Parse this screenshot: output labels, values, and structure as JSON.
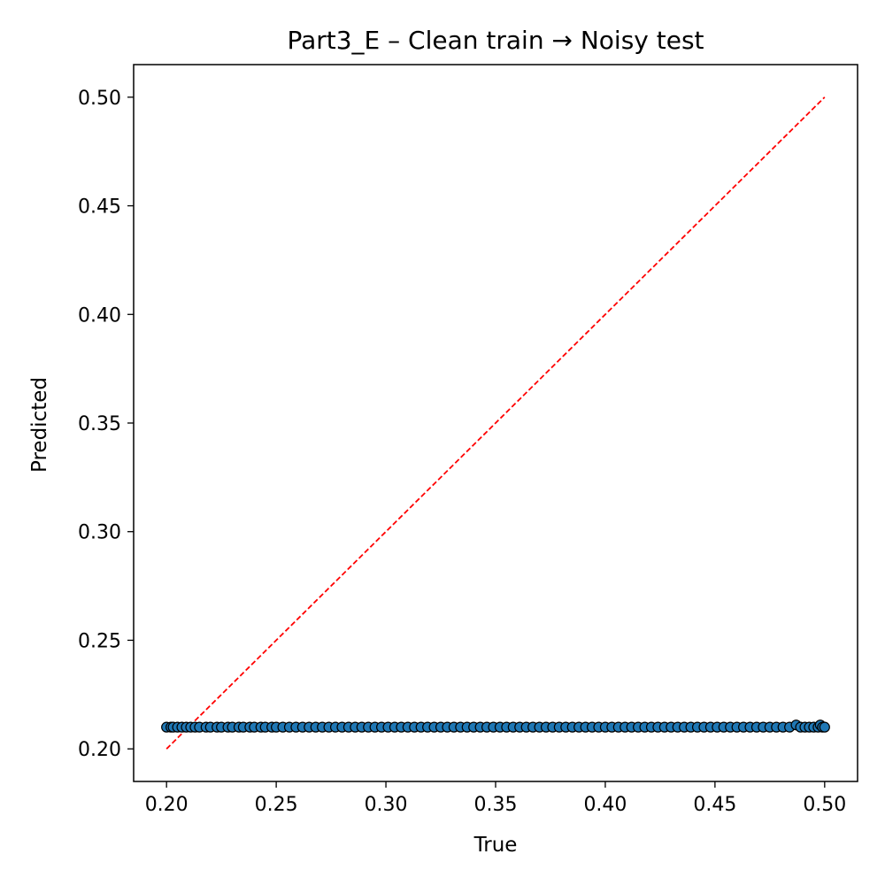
{
  "chart_data": {
    "type": "scatter",
    "title": "Part3_E – Clean train → Noisy test",
    "xlabel": "True",
    "ylabel": "Predicted",
    "xlim": [
      0.185,
      0.515
    ],
    "ylim": [
      0.185,
      0.515
    ],
    "xticks": [
      0.2,
      0.25,
      0.3,
      0.35,
      0.4,
      0.45,
      0.5
    ],
    "xtick_labels": [
      "0.20",
      "0.25",
      "0.30",
      "0.35",
      "0.40",
      "0.45",
      "0.50"
    ],
    "yticks": [
      0.2,
      0.25,
      0.3,
      0.35,
      0.4,
      0.45,
      0.5
    ],
    "ytick_labels": [
      "0.20",
      "0.25",
      "0.30",
      "0.35",
      "0.40",
      "0.45",
      "0.50"
    ],
    "grid": false,
    "series": [
      {
        "marker_color": "#1f77b4",
        "edge_color": "#000000",
        "points": {
          "x": [
            0.2,
            0.202,
            0.203,
            0.205,
            0.207,
            0.209,
            0.211,
            0.213,
            0.215,
            0.218,
            0.22,
            0.223,
            0.225,
            0.228,
            0.23,
            0.233,
            0.235,
            0.238,
            0.24,
            0.243,
            0.245,
            0.248,
            0.25,
            0.253,
            0.256,
            0.259,
            0.262,
            0.265,
            0.268,
            0.271,
            0.274,
            0.277,
            0.28,
            0.283,
            0.286,
            0.289,
            0.292,
            0.295,
            0.298,
            0.301,
            0.304,
            0.307,
            0.31,
            0.313,
            0.316,
            0.319,
            0.322,
            0.325,
            0.328,
            0.331,
            0.334,
            0.337,
            0.34,
            0.343,
            0.346,
            0.349,
            0.352,
            0.355,
            0.358,
            0.361,
            0.364,
            0.367,
            0.37,
            0.373,
            0.376,
            0.379,
            0.382,
            0.385,
            0.388,
            0.391,
            0.394,
            0.397,
            0.4,
            0.403,
            0.406,
            0.409,
            0.412,
            0.415,
            0.418,
            0.421,
            0.424,
            0.427,
            0.43,
            0.433,
            0.436,
            0.439,
            0.442,
            0.445,
            0.448,
            0.451,
            0.454,
            0.457,
            0.46,
            0.463,
            0.466,
            0.469,
            0.472,
            0.475,
            0.478,
            0.481,
            0.484,
            0.487,
            0.489,
            0.491,
            0.493,
            0.495,
            0.497,
            0.498,
            0.499,
            0.5
          ],
          "y": [
            0.21,
            0.21,
            0.21,
            0.21,
            0.21,
            0.21,
            0.21,
            0.21,
            0.21,
            0.21,
            0.21,
            0.21,
            0.21,
            0.21,
            0.21,
            0.21,
            0.21,
            0.21,
            0.21,
            0.21,
            0.21,
            0.21,
            0.21,
            0.21,
            0.21,
            0.21,
            0.21,
            0.21,
            0.21,
            0.21,
            0.21,
            0.21,
            0.21,
            0.21,
            0.21,
            0.21,
            0.21,
            0.21,
            0.21,
            0.21,
            0.21,
            0.21,
            0.21,
            0.21,
            0.21,
            0.21,
            0.21,
            0.21,
            0.21,
            0.21,
            0.21,
            0.21,
            0.21,
            0.21,
            0.21,
            0.21,
            0.21,
            0.21,
            0.21,
            0.21,
            0.21,
            0.21,
            0.21,
            0.21,
            0.21,
            0.21,
            0.21,
            0.21,
            0.21,
            0.21,
            0.21,
            0.21,
            0.21,
            0.21,
            0.21,
            0.21,
            0.21,
            0.21,
            0.21,
            0.21,
            0.21,
            0.21,
            0.21,
            0.21,
            0.21,
            0.21,
            0.21,
            0.21,
            0.21,
            0.21,
            0.21,
            0.21,
            0.21,
            0.21,
            0.21,
            0.21,
            0.21,
            0.21,
            0.21,
            0.21,
            0.21,
            0.211,
            0.21,
            0.21,
            0.21,
            0.21,
            0.21,
            0.211,
            0.21,
            0.21
          ]
        }
      }
    ],
    "reference_line": {
      "style": "dashed",
      "color": "#ff0000",
      "x": [
        0.2,
        0.5
      ],
      "y": [
        0.2,
        0.5
      ]
    }
  }
}
